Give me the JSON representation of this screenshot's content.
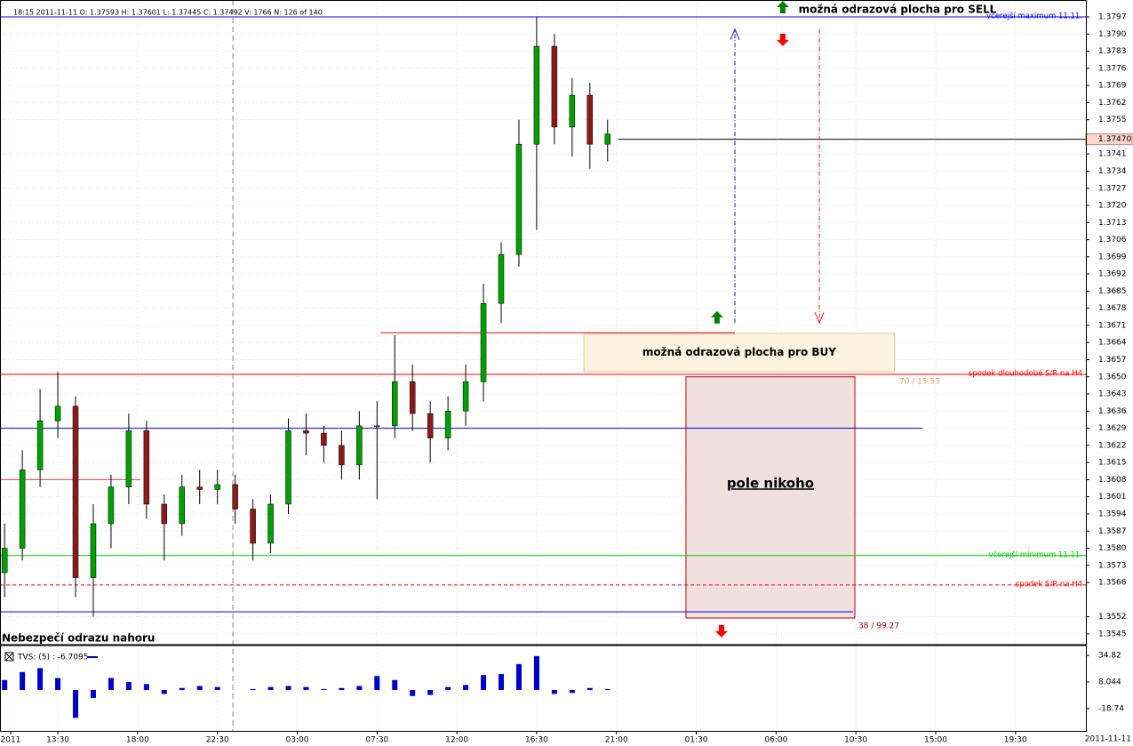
{
  "chart_data": {
    "type": "candlestick",
    "header": "18:15 2011-11-11    O: 1.37593    H: 1.37601    L: 1.37445    C: 1.37492    V: 1766    N: 126 of 140",
    "date_label": "2011-11-11",
    "up_color": "#00a000",
    "down_color": "#8b1a1a",
    "grid": true,
    "xlim": [
      -3.26,
      57.97
    ],
    "ylim": [
      1.35417,
      1.38039
    ],
    "xticks": [
      {
        "value": -2.66,
        "label": "2011"
      },
      {
        "value": 0,
        "label": "13:30"
      },
      {
        "value": 4.5,
        "label": "18:00"
      },
      {
        "value": 9,
        "label": "22:30"
      },
      {
        "value": 13.5,
        "label": "03:00"
      },
      {
        "value": 18,
        "label": "07:30"
      },
      {
        "value": 22.5,
        "label": "12:00"
      },
      {
        "value": 27,
        "label": "16:30"
      },
      {
        "value": 31.5,
        "label": "21:00"
      },
      {
        "value": 36,
        "label": "01:30"
      },
      {
        "value": 40.5,
        "label": "06:00"
      },
      {
        "value": 45,
        "label": "10:30"
      },
      {
        "value": 49.5,
        "label": "15:00"
      },
      {
        "value": 54,
        "label": "19:30"
      }
    ],
    "yticks": [
      1.3545,
      1.3552,
      1.3566,
      1.3573,
      {
        "value": 1.358,
        "label": "1.3580"
      },
      1.3587,
      1.3594,
      1.3601,
      1.3608,
      1.3615,
      1.3622,
      1.3629,
      1.3636,
      1.3643,
      {
        "value": 1.365,
        "label": "1.3650"
      },
      1.3657,
      1.3664,
      1.3671,
      1.3678,
      1.3685,
      1.3692,
      1.3699,
      1.3706,
      1.3713,
      {
        "value": 1.372,
        "label": "1.3720"
      },
      1.3727,
      1.3734,
      1.3741,
      1.3755,
      1.3762,
      1.3769,
      1.3776,
      1.3783,
      {
        "value": 1.379,
        "label": "1.3790"
      },
      1.3797
    ],
    "x": [
      -3,
      -2,
      -1,
      0,
      1,
      2,
      3,
      4,
      5,
      6,
      7,
      8,
      9,
      10,
      11,
      12,
      13,
      14,
      15,
      16,
      17,
      18,
      19,
      20,
      21,
      22,
      23,
      24,
      25,
      26,
      27,
      28,
      29,
      30,
      31
    ],
    "open": [
      1.357,
      1.358,
      1.3612,
      1.3632,
      1.3638,
      1.3568,
      1.359,
      1.3605,
      1.3628,
      1.3598,
      1.359,
      1.3605,
      1.3604,
      1.3606,
      1.3596,
      1.3582,
      1.3598,
      1.3628,
      1.3627,
      1.3622,
      1.3614,
      1.363,
      1.363,
      1.3648,
      1.3635,
      1.3625,
      1.3636,
      1.3648,
      1.368,
      1.37,
      1.3745,
      1.3785,
      1.3752,
      1.3765,
      1.3745
    ],
    "high": [
      1.359,
      1.362,
      1.3645,
      1.3652,
      1.3642,
      1.3598,
      1.361,
      1.3635,
      1.3632,
      1.3602,
      1.361,
      1.3612,
      1.3612,
      1.361,
      1.36,
      1.3602,
      1.3633,
      1.3635,
      1.363,
      1.3628,
      1.3636,
      1.364,
      1.3667,
      1.3655,
      1.364,
      1.3642,
      1.3655,
      1.3688,
      1.3705,
      1.3755,
      1.3797,
      1.379,
      1.3772,
      1.377,
      1.3755
    ],
    "low": [
      1.356,
      1.3575,
      1.3605,
      1.3625,
      1.356,
      1.3552,
      1.358,
      1.3598,
      1.3592,
      1.3575,
      1.3585,
      1.3598,
      1.3598,
      1.359,
      1.3575,
      1.3578,
      1.3594,
      1.3618,
      1.3615,
      1.3608,
      1.3608,
      1.36,
      1.3625,
      1.3628,
      1.3615,
      1.362,
      1.363,
      1.364,
      1.3672,
      1.3695,
      1.371,
      1.3745,
      1.374,
      1.3735,
      1.3738
    ],
    "close": [
      1.358,
      1.3612,
      1.3632,
      1.3638,
      1.3568,
      1.359,
      1.3605,
      1.3628,
      1.3598,
      1.359,
      1.3605,
      1.3604,
      1.3606,
      1.3596,
      1.3582,
      1.3598,
      1.3628,
      1.3627,
      1.3622,
      1.3614,
      1.363,
      1.363,
      1.3648,
      1.3635,
      1.3625,
      1.3636,
      1.3648,
      1.368,
      1.37,
      1.3745,
      1.3785,
      1.3752,
      1.3765,
      1.3745,
      1.37492
    ],
    "current_price": {
      "value": 1.3747,
      "label": "1.37470",
      "from": 31.6
    },
    "separators": [
      9.87
    ],
    "levels": [
      {
        "name": "včerejší maximum 11.11.",
        "price": 1.3797,
        "color": "#0000ff",
        "style": "solid"
      },
      {
        "name": "spodek dlouhodobé S/R na H4",
        "price": 1.3651,
        "color": "#ff0000",
        "style": "solid"
      },
      {
        "name": "včerejší minimum 11.11.",
        "price": 1.3577,
        "color": "#00cc00",
        "style": "solid"
      },
      {
        "name": "spodek S/R na H4",
        "price": 1.3565,
        "color": "#ff0000",
        "style": "dashed"
      }
    ],
    "lines": [
      {
        "price": 1.3629,
        "from": -3.26,
        "to": 48.75,
        "color": "#0000cc"
      },
      {
        "price": 1.3608,
        "from": -3.26,
        "to": 4.66,
        "color": "#ff4040"
      },
      {
        "price": 1.3554,
        "from": -3.26,
        "to": 44.84,
        "color": "#0000cc"
      },
      {
        "price": 1.3668,
        "from": 18.19,
        "to": 38.18,
        "color": "#ff0000"
      }
    ],
    "zones": [
      {
        "label": "možná odrazová plocha pro BUY",
        "from": 29.66,
        "to": 47.19,
        "top": 1.36677,
        "bottom": 1.36521,
        "fill": "#fdf3e0",
        "color": "#e8c48c"
      },
      {
        "label": "pole nikoho",
        "from": 35.42,
        "to": 44.94,
        "top": 1.365,
        "bottom": 1.35515,
        "fill": "#f0e0e0",
        "color": "#c00000",
        "note_top": "70 / 15.53",
        "note_bottom": "38 / 99.27"
      }
    ],
    "arrows": [
      {
        "time": 37.17,
        "price": 1.36743,
        "dir": "up",
        "color": "#008000"
      },
      {
        "time": 40.88,
        "price": 1.37876,
        "dir": "down",
        "color": "#ff0000"
      },
      {
        "time": 40.88,
        "price": 1.3801,
        "dir": "up",
        "color": "#008000"
      },
      {
        "time": 37.42,
        "price": 1.35461,
        "dir": "down",
        "color": "#ff0000"
      }
    ],
    "guides": [
      {
        "time": 38.18,
        "from": 1.3672,
        "to": 1.3792,
        "color": "#2020c0"
      },
      {
        "time": 42.94,
        "from": 1.3792,
        "to": 1.3672,
        "color": "#e02020"
      }
    ],
    "sell_note": "možná odrazová plocha pro SELL",
    "warning_note": "Nebezpečí odrazu nahoru",
    "indicator": {
      "type": "bar",
      "label": "TVS: (5) : -6.7095",
      "color": "#0000cc",
      "values": [
        10,
        18,
        22,
        12,
        -28,
        -8,
        12,
        8,
        6,
        -4,
        2,
        4,
        3,
        0,
        1,
        3,
        4,
        3,
        1,
        2,
        4,
        14,
        10,
        -6,
        -5,
        3,
        5,
        15,
        16,
        26,
        34,
        -4,
        -3,
        2,
        1
      ],
      "ylim": [
        -41.06,
        42.85
      ],
      "yticks": [
        34.82,
        8.044,
        -18.74
      ]
    }
  }
}
